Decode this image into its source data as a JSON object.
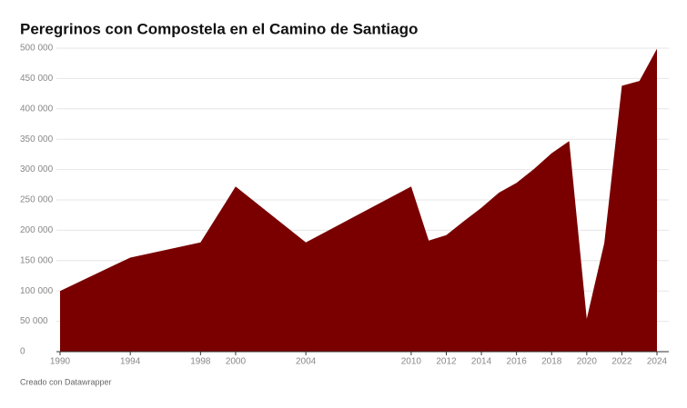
{
  "chart_data": {
    "type": "area",
    "title": "Peregrinos con Compostela en el Camino de Santiago",
    "footer": "Creado con Datawrapper",
    "color": "#7a0000",
    "x": [
      1990,
      1994,
      1998,
      2000,
      2004,
      2010,
      2011,
      2012,
      2013,
      2014,
      2015,
      2016,
      2017,
      2018,
      2019,
      2020,
      2021,
      2022,
      2023,
      2024
    ],
    "values": [
      100000,
      155000,
      180000,
      272000,
      180000,
      272000,
      183000,
      192000,
      215000,
      237000,
      262000,
      278000,
      301000,
      327000,
      347000,
      54000,
      179000,
      438000,
      446000,
      499000
    ],
    "xlim": [
      1990,
      2024
    ],
    "xticks": [
      1990,
      1994,
      1998,
      2000,
      2004,
      2010,
      2012,
      2014,
      2016,
      2018,
      2020,
      2022,
      2024
    ],
    "ylim": [
      0,
      500000
    ],
    "yticks": [
      0,
      {
        "value": 50000,
        "label": "50 000"
      },
      {
        "value": 100000,
        "label": "100 000"
      },
      {
        "value": 150000,
        "label": "150 000"
      },
      {
        "value": 200000,
        "label": "200 000"
      },
      {
        "value": 250000,
        "label": "250 000"
      },
      {
        "value": 300000,
        "label": "300 000"
      },
      {
        "value": 350000,
        "label": "350 000"
      },
      {
        "value": 400000,
        "label": "400 000"
      },
      {
        "value": 450000,
        "label": "450 000"
      },
      {
        "value": 500000,
        "label": "500 000"
      }
    ],
    "grid": true
  }
}
